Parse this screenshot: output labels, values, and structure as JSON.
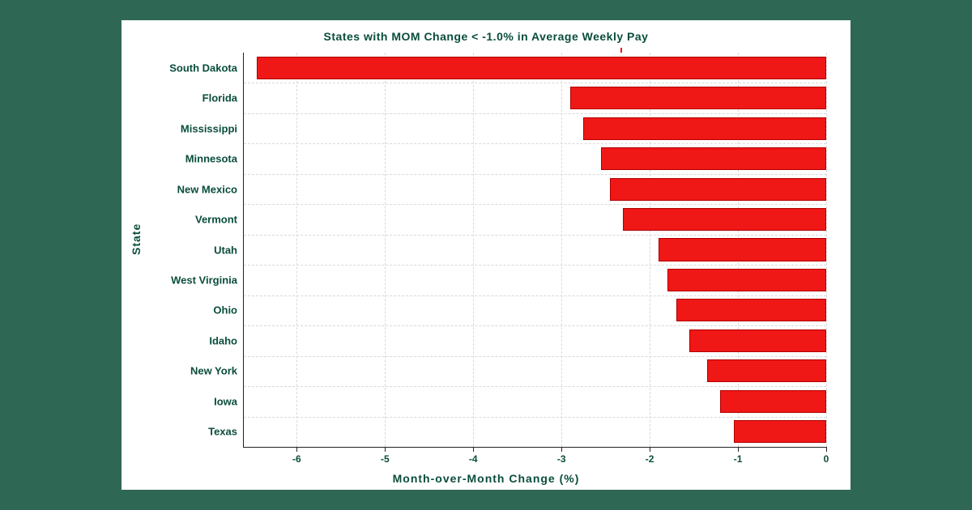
{
  "chart": {
    "type": "bar-horizontal",
    "title": "States with MOM Change < -1.0% in Average Weekly Pay",
    "x_axis_label": "Month-over-Month Change (%)",
    "y_axis_label": "State",
    "xlim": [
      -6.6,
      0
    ],
    "xticks": [
      -6,
      -5,
      -4,
      -3,
      -2,
      -1,
      0
    ],
    "bar_color": "#f01717",
    "bar_border_color": "#b00000",
    "background_color": "#ffffff",
    "outer_background_color": "#2e6855",
    "grid_color": "#d9d9d9",
    "axis_color": "#222222",
    "text_color": "#0a4d3c",
    "title_fontsize": 14,
    "label_fontsize": 14,
    "tick_fontsize": 12,
    "bar_fill_ratio": 0.75,
    "categories": [
      "South Dakota",
      "Florida",
      "Mississippi",
      "Minnesota",
      "New Mexico",
      "Vermont",
      "Utah",
      "West Virginia",
      "Ohio",
      "Idaho",
      "New York",
      "Iowa",
      "Texas"
    ],
    "values": [
      -6.45,
      -2.9,
      -2.75,
      -2.55,
      -2.45,
      -2.3,
      -1.9,
      -1.8,
      -1.7,
      -1.55,
      -1.35,
      -1.2,
      -1.05
    ]
  }
}
